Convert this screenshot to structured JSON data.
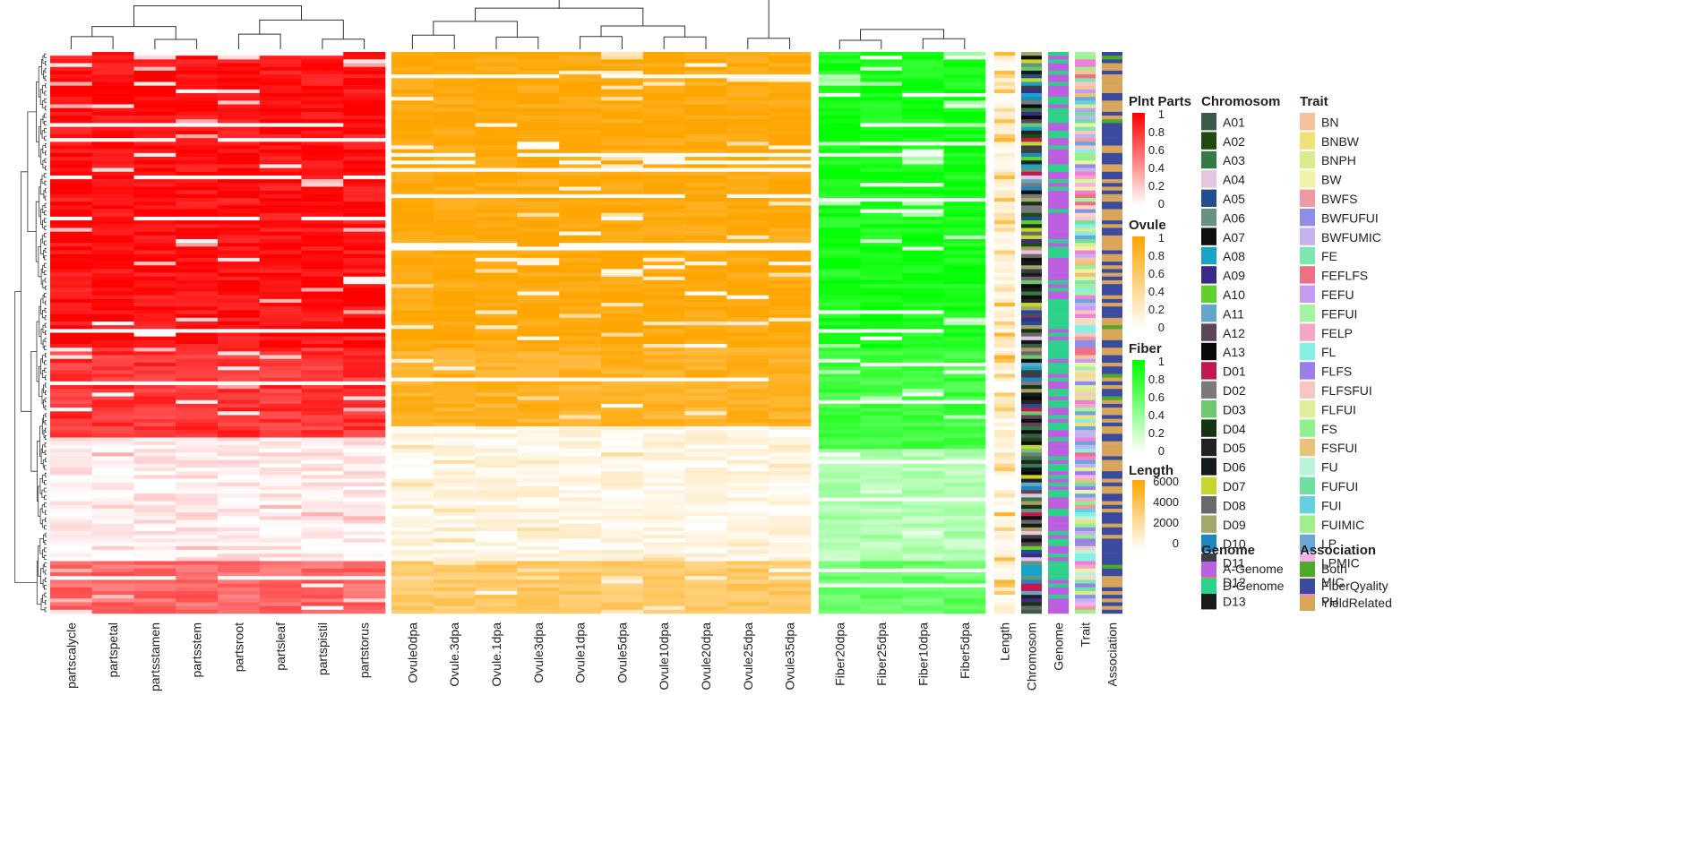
{
  "chart_data": {
    "type": "heatmap",
    "rows": 150,
    "panels": [
      {
        "id": "plant",
        "legend_title": "Plnt Parts",
        "color_low": "#ffffff",
        "color_high": "#ff0000",
        "scale_range": [
          0,
          1
        ],
        "scale_ticks": [
          "1",
          "0.8",
          "0.6",
          "0.4",
          "0.2",
          "0"
        ],
        "columns": [
          "partscalycle",
          "partspetal",
          "partsstamen",
          "partsstem",
          "partsroot",
          "partsleaf",
          "partspistil",
          "partstorus"
        ],
        "block_profile": [
          {
            "row_to": 0.02,
            "level": 0.9
          },
          {
            "row_to": 0.52,
            "level": 0.95
          },
          {
            "row_to": 0.68,
            "level": 0.8
          },
          {
            "row_to": 0.9,
            "level": 0.08
          },
          {
            "row_to": 1.0,
            "level": 0.6
          }
        ]
      },
      {
        "id": "ovule",
        "legend_title": "Ovule",
        "color_low": "#ffffff",
        "color_high": "#ffa500",
        "scale_range": [
          0,
          1
        ],
        "scale_ticks": [
          "1",
          "0.8",
          "0.6",
          "0.4",
          "0.2",
          "0"
        ],
        "columns": [
          "Ovule0dpa",
          "Ovule.3dpa",
          "Ovule.1dpa",
          "Ovule3dpa",
          "Ovule1dpa",
          "Ovule5dpa",
          "Ovule10dpa",
          "Ovule20dpa",
          "Ovule25dpa",
          "Ovule35dpa"
        ],
        "block_profile": [
          {
            "row_to": 0.52,
            "level": 0.97
          },
          {
            "row_to": 0.66,
            "level": 0.85
          },
          {
            "row_to": 0.9,
            "level": 0.1
          },
          {
            "row_to": 1.0,
            "level": 0.6
          }
        ]
      },
      {
        "id": "fiber",
        "legend_title": "Fiber",
        "color_low": "#ffffff",
        "color_high": "#00ff00",
        "scale_range": [
          0,
          1
        ],
        "scale_ticks": [
          "1",
          "0.8",
          "0.6",
          "0.4",
          "0.2",
          "0"
        ],
        "columns": [
          "Fiber20dpa",
          "Fiber25dpa",
          "Fiber10dpa",
          "Fiber5dpa"
        ],
        "block_profile": [
          {
            "row_to": 0.52,
            "level": 0.92
          },
          {
            "row_to": 0.7,
            "level": 0.75
          },
          {
            "row_to": 0.9,
            "level": 0.3
          },
          {
            "row_to": 1.0,
            "level": 0.6
          }
        ]
      }
    ],
    "annotations": [
      {
        "id": "length",
        "label": "Length"
      },
      {
        "id": "chromosom",
        "label": "Chromosom"
      },
      {
        "id": "genome",
        "label": "Genome"
      },
      {
        "id": "trait",
        "label": "Trait"
      },
      {
        "id": "association",
        "label": "Association"
      }
    ],
    "length_legend": {
      "title": "Length",
      "color_low": "#ffffff",
      "color_high": "#ffa500",
      "scale_range": [
        0,
        7000
      ],
      "ticks": [
        "6000",
        "4000",
        "2000",
        "0"
      ]
    },
    "chromosome_legend": {
      "title": "Chromosom",
      "items": [
        {
          "label": "A01",
          "color": "#3c5a48"
        },
        {
          "label": "A02",
          "color": "#1f4a10"
        },
        {
          "label": "A03",
          "color": "#357a46"
        },
        {
          "label": "A04",
          "color": "#e5c6e0"
        },
        {
          "label": "A05",
          "color": "#1f4f8f"
        },
        {
          "label": "A06",
          "color": "#68927f"
        },
        {
          "label": "A07",
          "color": "#0f0f0f"
        },
        {
          "label": "A08",
          "color": "#18a3c7"
        },
        {
          "label": "A09",
          "color": "#3a2a8a"
        },
        {
          "label": "A10",
          "color": "#5fd12a"
        },
        {
          "label": "A11",
          "color": "#62a6c8"
        },
        {
          "label": "A12",
          "color": "#5d4458"
        },
        {
          "label": "A13",
          "color": "#0a0a0a"
        },
        {
          "label": "D01",
          "color": "#c2184f"
        },
        {
          "label": "D02",
          "color": "#7a7a7a"
        },
        {
          "label": "D03",
          "color": "#6ec86e"
        },
        {
          "label": "D04",
          "color": "#143414"
        },
        {
          "label": "D05",
          "color": "#222222"
        },
        {
          "label": "D06",
          "color": "#131a1d"
        },
        {
          "label": "D07",
          "color": "#c6d62a"
        },
        {
          "label": "D08",
          "color": "#696969"
        },
        {
          "label": "D09",
          "color": "#a3a86a"
        },
        {
          "label": "D10",
          "color": "#1e86c1"
        },
        {
          "label": "D11",
          "color": "#3c3e46"
        },
        {
          "label": "D12",
          "color": "#a99d63"
        },
        {
          "label": "D13",
          "color": "#1a1a1a"
        }
      ]
    },
    "genome_legend": {
      "title": "Genome",
      "items": [
        {
          "label": "A-Genome",
          "color": "#bb5fe0"
        },
        {
          "label": "D-Genome",
          "color": "#2ed18a"
        }
      ]
    },
    "trait_legend": {
      "title": "Trait",
      "items": [
        {
          "label": "BN",
          "color": "#f7c29a"
        },
        {
          "label": "BNBW",
          "color": "#eee07a"
        },
        {
          "label": "BNPH",
          "color": "#d8eb8e"
        },
        {
          "label": "BW",
          "color": "#eef3a8"
        },
        {
          "label": "BWFS",
          "color": "#ee9aa0"
        },
        {
          "label": "BWFUFUI",
          "color": "#8f8ee5"
        },
        {
          "label": "BWFUMIC",
          "color": "#c4b3ef"
        },
        {
          "label": "FE",
          "color": "#7ee6b0"
        },
        {
          "label": "FEFLFS",
          "color": "#ef6f85"
        },
        {
          "label": "FEFU",
          "color": "#c49cf2"
        },
        {
          "label": "FEFUI",
          "color": "#a3f3a3"
        },
        {
          "label": "FELP",
          "color": "#f5a6c5"
        },
        {
          "label": "FL",
          "color": "#86f0e3"
        },
        {
          "label": "FLFS",
          "color": "#9d7de8"
        },
        {
          "label": "FLFSFUI",
          "color": "#f7c6c6"
        },
        {
          "label": "FLFUI",
          "color": "#dff09a"
        },
        {
          "label": "FS",
          "color": "#8ef08e"
        },
        {
          "label": "FSFUI",
          "color": "#e9c27a"
        },
        {
          "label": "FU",
          "color": "#b8f3da"
        },
        {
          "label": "FUFUI",
          "color": "#6ee0a0"
        },
        {
          "label": "FUI",
          "color": "#66cfe0"
        },
        {
          "label": "FUIMIC",
          "color": "#a2ee8a"
        },
        {
          "label": "LP",
          "color": "#6ba6db"
        },
        {
          "label": "LPMIC",
          "color": "#f2b0ef"
        },
        {
          "label": "MIC",
          "color": "#f5dcc1"
        },
        {
          "label": "PH",
          "color": "#ef7fd8"
        }
      ]
    },
    "association_legend": {
      "title": "Association",
      "items": [
        {
          "label": "Both",
          "color": "#4caa28"
        },
        {
          "label": "FiberQyality",
          "color": "#3a4a9e"
        },
        {
          "label": "YieldRelated",
          "color": "#d9a55a"
        }
      ]
    }
  }
}
